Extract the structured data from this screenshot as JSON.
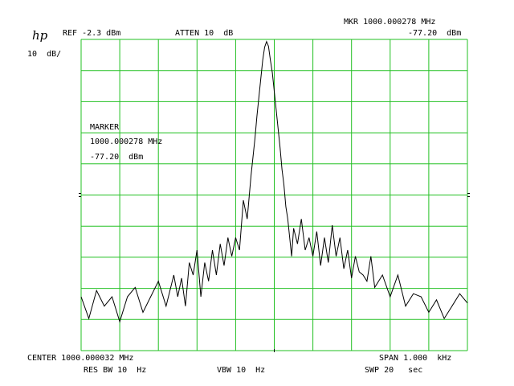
{
  "header": {
    "logo": "hp",
    "ref": "REF -2.3 dBm",
    "atten": "ATTEN 10  dB",
    "mkr_freq": "MKR 1000.000278 MHz",
    "mkr_level": "-77.20  dBm",
    "scale": "10  dB/"
  },
  "marker_box": {
    "title": "MARKER",
    "freq": "1000.000278 MHz",
    "level": "-77.20  dBm"
  },
  "footer": {
    "center": "CENTER 1000.000032 MHz",
    "span": "SPAN 1.000  kHz",
    "res_bw": "RES BW 10  Hz",
    "vbw": "VBW 10  Hz",
    "swp": "SWP 20   sec"
  },
  "colors": {
    "grid": "#22c022",
    "trace": "#000000",
    "background": "#ffffff"
  },
  "chart_data": {
    "type": "line",
    "x_unit": "Hz offset from center",
    "y_unit": "dBm",
    "xlim": [
      -500,
      500
    ],
    "ylim": [
      -102.3,
      -2.3
    ],
    "grid": true,
    "x": [
      -500,
      -480,
      -460,
      -440,
      -420,
      -400,
      -380,
      -360,
      -340,
      -320,
      -300,
      -280,
      -260,
      -250,
      -240,
      -230,
      -220,
      -210,
      -200,
      -190,
      -180,
      -170,
      -160,
      -150,
      -140,
      -130,
      -120,
      -110,
      -100,
      -90,
      -80,
      -70,
      -60,
      -50,
      -45,
      -40,
      -35,
      -30,
      -25,
      -20,
      -15,
      -10,
      -5,
      0,
      5,
      10,
      15,
      20,
      25,
      30,
      35,
      40,
      45,
      50,
      60,
      70,
      80,
      90,
      100,
      110,
      120,
      130,
      140,
      150,
      160,
      170,
      180,
      190,
      200,
      210,
      220,
      230,
      240,
      250,
      260,
      280,
      300,
      320,
      340,
      360,
      380,
      400,
      420,
      440,
      460,
      480,
      500
    ],
    "y": [
      -85,
      -92,
      -83,
      -88,
      -85,
      -93,
      -85,
      -82,
      -90,
      -85,
      -80,
      -88,
      -78,
      -85,
      -79,
      -88,
      -74,
      -78,
      -70,
      -85,
      -74,
      -80,
      -70,
      -78,
      -68,
      -75,
      -66,
      -72,
      -66,
      -70,
      -54,
      -60,
      -46,
      -34,
      -27,
      -21,
      -15,
      -9,
      -4.8,
      -3,
      -4.5,
      -9,
      -13,
      -19,
      -25,
      -31,
      -37,
      -44,
      -49,
      -56,
      -60,
      -66,
      -72,
      -63,
      -68,
      -60,
      -70,
      -66,
      -72,
      -64,
      -75,
      -66,
      -74,
      -62,
      -72,
      -66,
      -76,
      -70,
      -79,
      -72,
      -77,
      -78,
      -80,
      -72,
      -82,
      -78,
      -85,
      -78,
      -88,
      -84,
      -85,
      -90,
      -86,
      -92,
      -88,
      -84,
      -87
    ]
  }
}
